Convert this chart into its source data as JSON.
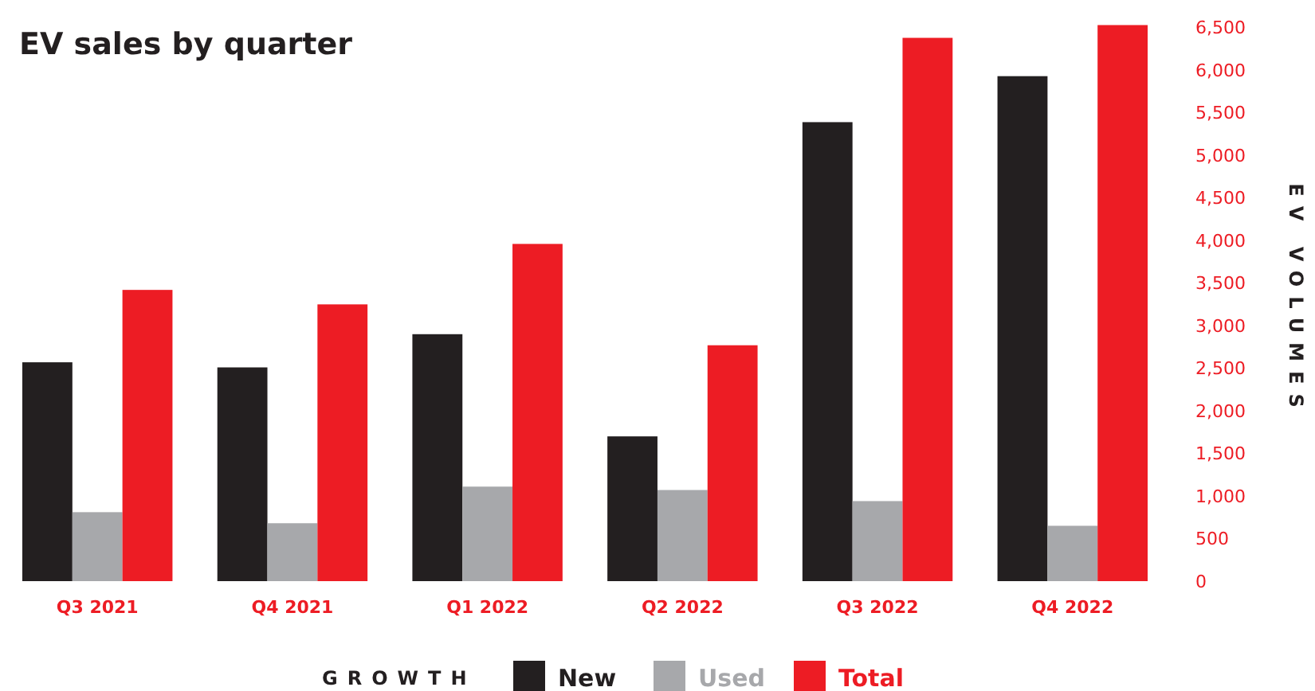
{
  "chart_data": {
    "type": "bar",
    "title": "EV sales by quarter",
    "ylabel": "EV VOLUMES",
    "legend_title": "GROWTH",
    "legend": "bottom",
    "grid": false,
    "categories": [
      "Q3 2021",
      "Q4 2021",
      "Q1 2022",
      "Q2 2022",
      "Q3 2022",
      "Q4 2022"
    ],
    "series": [
      {
        "name": "New",
        "color": "#231f20",
        "values": [
          2570,
          2510,
          2900,
          1700,
          5390,
          5930
        ]
      },
      {
        "name": "Used",
        "color": "#a7a8ab",
        "values": [
          810,
          680,
          1110,
          1070,
          940,
          650
        ]
      },
      {
        "name": "Total",
        "color": "#ed1c24",
        "values": [
          3420,
          3250,
          3960,
          2770,
          6380,
          6530
        ]
      }
    ],
    "ylim": [
      0,
      6600
    ],
    "yticks": [
      {
        "value": 0,
        "label": "0"
      },
      {
        "value": 500,
        "label": "500"
      },
      {
        "value": 1000,
        "label": "1,000"
      },
      {
        "value": 1500,
        "label": "1,500"
      },
      {
        "value": 2000,
        "label": "2,000"
      },
      {
        "value": 2500,
        "label": "2,500"
      },
      {
        "value": 3000,
        "label": "3,000"
      },
      {
        "value": 3500,
        "label": "3,500"
      },
      {
        "value": 4000,
        "label": "4,000"
      },
      {
        "value": 4500,
        "label": "4,500"
      },
      {
        "value": 5000,
        "label": "5,000"
      },
      {
        "value": 5500,
        "label": "5,500"
      },
      {
        "value": 6000,
        "label": "6,000"
      },
      {
        "value": 6500,
        "label": "6,500"
      }
    ]
  }
}
